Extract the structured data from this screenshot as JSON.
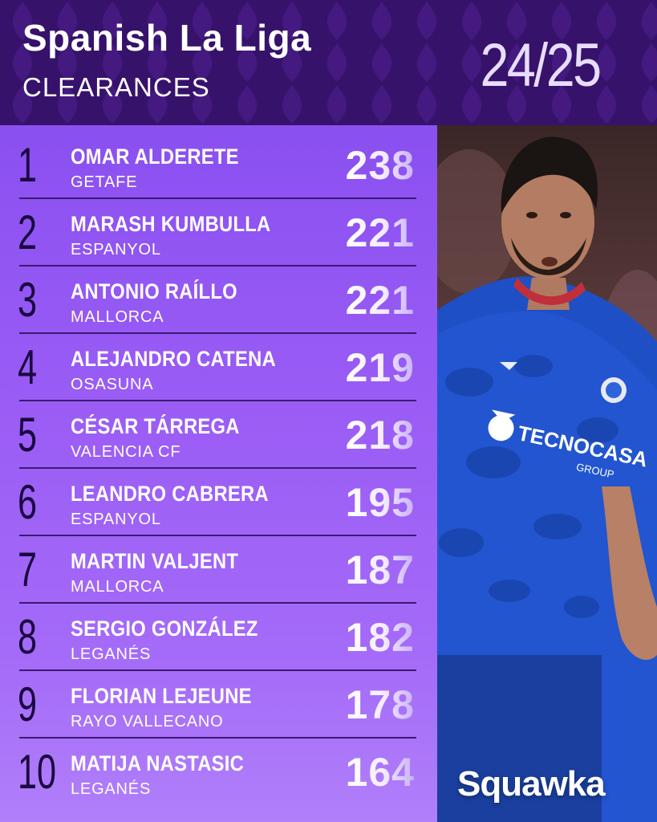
{
  "header": {
    "title": "Spanish La Liga",
    "subtitle": "CLEARANCES",
    "season": "24/25"
  },
  "colors": {
    "accent_purple": "#9a5cf5",
    "header_bg": "#3a1470",
    "rank_color": "#1a0840",
    "kit_blue": "#1f4fc4"
  },
  "rows": [
    {
      "rank": "1",
      "name": "OMAR ALDERETE",
      "club": "GETAFE",
      "value": "238"
    },
    {
      "rank": "2",
      "name": "MARASH KUMBULLA",
      "club": "ESPANYOL",
      "value": "221"
    },
    {
      "rank": "3",
      "name": "ANTONIO RAÍLLO",
      "club": "MALLORCA",
      "value": "221"
    },
    {
      "rank": "4",
      "name": "ALEJANDRO CATENA",
      "club": "OSASUNA",
      "value": "219"
    },
    {
      "rank": "5",
      "name": "CÉSAR TÁRREGA",
      "club": "VALENCIA CF",
      "value": "218"
    },
    {
      "rank": "6",
      "name": "LEANDRO CABRERA",
      "club": "ESPANYOL",
      "value": "195"
    },
    {
      "rank": "7",
      "name": "MARTIN VALJENT",
      "club": "MALLORCA",
      "value": "187"
    },
    {
      "rank": "8",
      "name": "SERGIO GONZÁLEZ",
      "club": "LEGANÉS",
      "value": "182"
    },
    {
      "rank": "9",
      "name": "FLORIAN LEJEUNE",
      "club": "RAYO VALLECANO",
      "value": "178"
    },
    {
      "rank": "10",
      "name": "MATIJA NASTASIC",
      "club": "LEGANÉS",
      "value": "164"
    }
  ],
  "photo": {
    "shirt_sponsor": "TECNOCASA",
    "shirt_sponsor_sub": "GROUP"
  },
  "brand": "Squawka"
}
